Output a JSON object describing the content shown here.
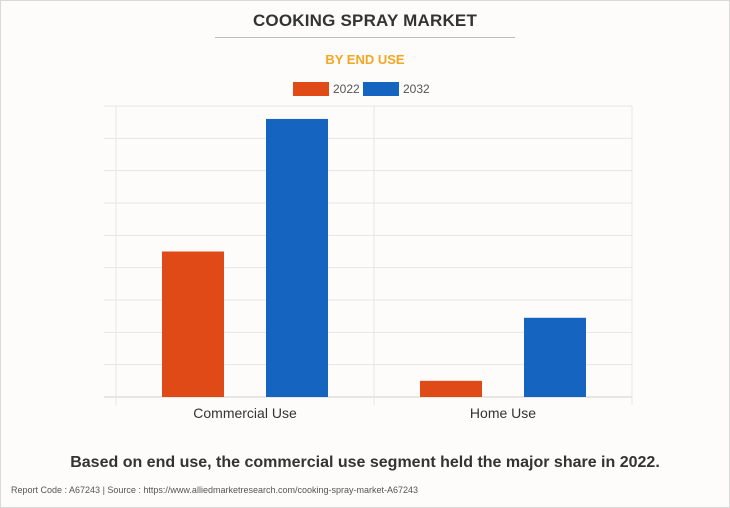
{
  "header": {
    "title": "COOKING SPRAY MARKET",
    "subtitle": "BY END USE"
  },
  "legend": [
    {
      "label": "2022",
      "color": "#e04a17"
    },
    {
      "label": "2032",
      "color": "#1565c0"
    }
  ],
  "chart_data": {
    "type": "bar",
    "title": "COOKING SPRAY MARKET",
    "subtitle": "BY END USE",
    "categories": [
      "Commercial Use",
      "Home Use"
    ],
    "series": [
      {
        "name": "2022",
        "values": [
          45,
          5
        ],
        "color": "#e04a17"
      },
      {
        "name": "2032",
        "values": [
          86,
          24.5
        ],
        "color": "#1565c0"
      }
    ],
    "xlabel": "",
    "ylabel": "",
    "ylim": [
      0,
      90
    ],
    "grid": true,
    "legend_position": "top-center"
  },
  "caption": "Based on end use, the commercial use segment held the major share in 2022.",
  "footer": "Report Code : A67243  |  Source : https://www.alliedmarketresearch.com/cooking-spray-market-A67243"
}
